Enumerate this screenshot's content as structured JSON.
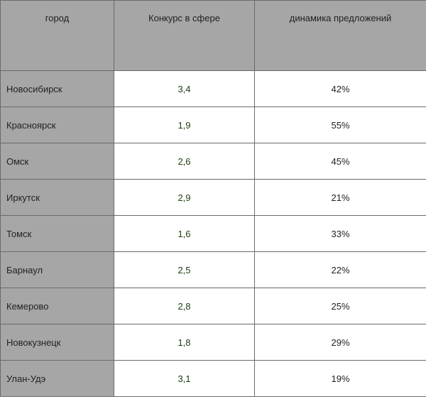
{
  "table": {
    "headers": [
      "город",
      "Конкурс в сфере",
      "динамика предложений"
    ],
    "rows": [
      {
        "city": "Новосибирск",
        "competition": "3,4",
        "dynamics": "42%"
      },
      {
        "city": "Красноярск",
        "competition": "1,9",
        "dynamics": "55%"
      },
      {
        "city": "Омск",
        "competition": "2,6",
        "dynamics": "45%"
      },
      {
        "city": "Иркутск",
        "competition": "2,9",
        "dynamics": "21%"
      },
      {
        "city": "Томск",
        "competition": "1,6",
        "dynamics": "33%"
      },
      {
        "city": "Барнаул",
        "competition": "2,5",
        "dynamics": "22%"
      },
      {
        "city": "Кемерово",
        "competition": "2,8",
        "dynamics": "25%"
      },
      {
        "city": "Новокузнецк",
        "competition": "1,8",
        "dynamics": "29%"
      },
      {
        "city": "Улан-Удэ",
        "competition": "3,1",
        "dynamics": "19%"
      }
    ]
  },
  "colors": {
    "header_bg": "#a6a6a6",
    "city_bg": "#a6a6a6",
    "cell_bg": "#ffffff",
    "border": "#6a6a6a",
    "text": "#222222",
    "competition_text": "#1a3d12"
  }
}
